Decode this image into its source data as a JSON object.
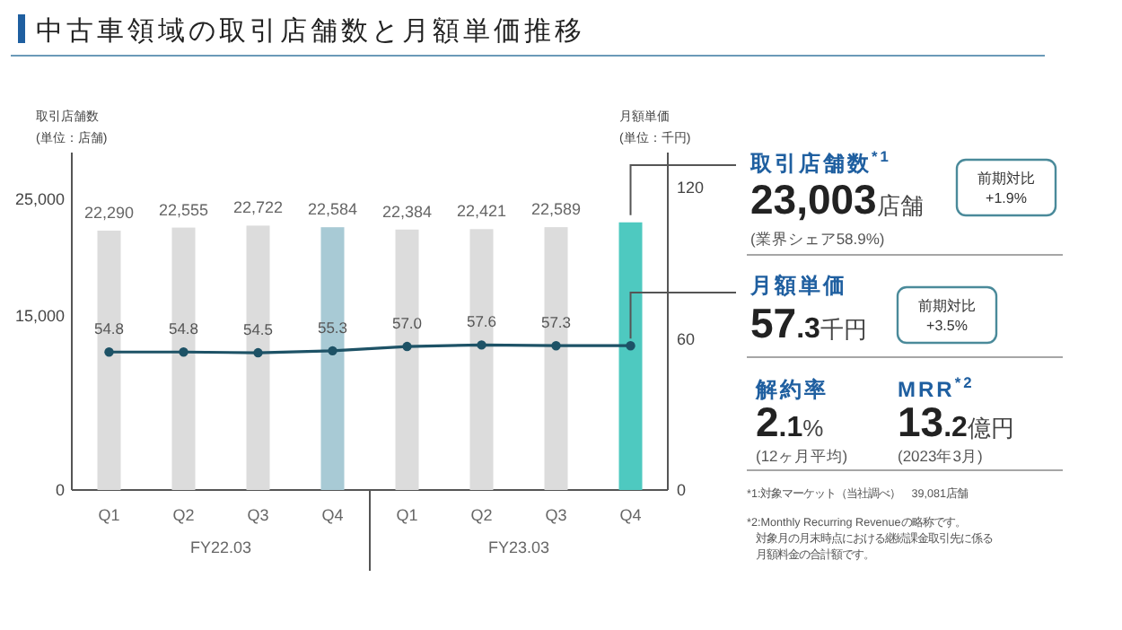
{
  "chart_data": [
    {
      "type": "bar",
      "title": "中古車領域の取引店舗数と月額単価推移",
      "ylabel": "取引店舗数\n(単位：店舗)",
      "y2label": "月額単価\n(単位：千円)",
      "categories": [
        "Q1",
        "Q2",
        "Q3",
        "Q4",
        "Q1",
        "Q2",
        "Q3",
        "Q4"
      ],
      "series": [
        {
          "type": "bar",
          "colors": [
            "#dcdcdc",
            "#dcdcdc",
            "#dcdcdc",
            "#a8cad5",
            "#dcdcdc",
            "#dcdcdc",
            "#dcdcdc",
            "#4ec9c0"
          ],
          "values": [
            22290,
            22555,
            22722,
            22584,
            22384,
            22421,
            22589,
            23003
          ],
          "value_labels": [
            "22,290",
            "22,555",
            "22,722",
            "22,584",
            "22,384",
            "22,421",
            "22,589",
            null
          ]
        },
        {
          "type": "line",
          "axis": "y2",
          "color": "#1d5266",
          "values": [
            54.8,
            54.8,
            54.5,
            55.3,
            57.0,
            57.6,
            57.3,
            57.3
          ],
          "value_labels": [
            "54.8",
            "54.8",
            "54.5",
            "55.3",
            "57.0",
            "57.6",
            "57.3",
            null
          ]
        }
      ],
      "marker": "circle",
      "line_style": "solid",
      "ylim": [
        0,
        29000
      ],
      "yticks": [
        0,
        {
          "value": 15000,
          "label": "15,000"
        },
        {
          "value": 25000,
          "label": "25,000"
        }
      ],
      "y2lim": [
        0,
        134
      ],
      "y2ticks": [
        0,
        60,
        120
      ],
      "annotations": [
        "FY22.03",
        "FY23.03"
      ]
    },
    {
      "type": "other",
      "annotations": [
        "取引店舗数$^{*1}$",
        "23,003店舗",
        "(業界シェア58.9%)",
        "前期対比\n+1.9%",
        "月額単価",
        "57.3千円",
        "前期対比\n+3.5%",
        "解約率",
        "2.1%",
        "(12ヶ月平均)",
        "MRR$^{*2}$",
        "13.2億円",
        "(2023年3月)",
        "*1:対象マーケット（当社調べ）　39,081店舗",
        "*2:Monthly Recurring Revenueの略称です。",
        "対象月の月末時点における継続課金取引先に係る月額料金の合計額です。"
      ]
    }
  ]
}
